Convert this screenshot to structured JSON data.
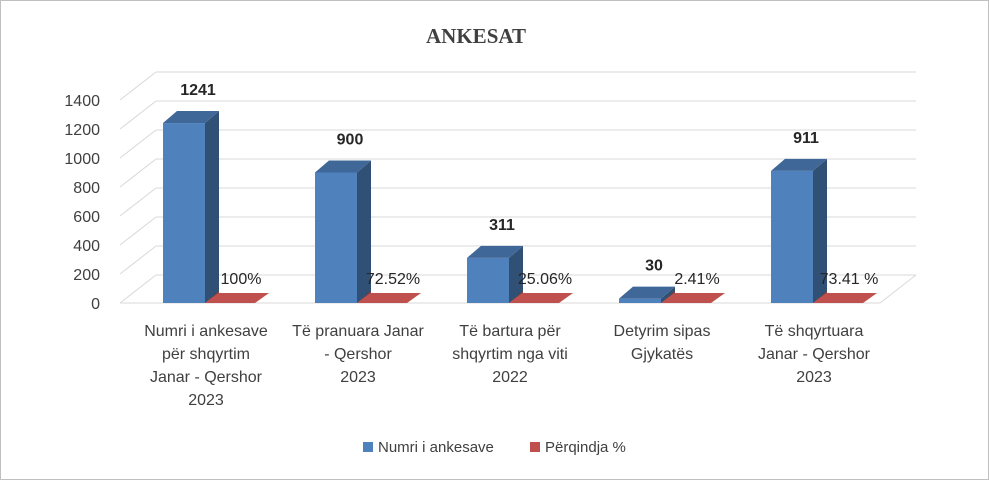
{
  "chart_data": {
    "type": "bar",
    "title": "ANKESAT",
    "categories": [
      [
        "Numri i ankesave",
        "për shqyrtim",
        "Janar - Qershor",
        "2023"
      ],
      [
        "Të pranuara  Janar",
        "- Qershor",
        "2023"
      ],
      [
        "Të bartura për",
        "shqyrtim nga viti",
        "2022"
      ],
      [
        "Detyrim sipas",
        "Gjykatës"
      ],
      [
        "Të shqyrtuara",
        "Janar - Qershor",
        "2023"
      ]
    ],
    "series": [
      {
        "name": "Numri i ankesave",
        "color": "#4f81bd",
        "values": [
          1241,
          900,
          311,
          30,
          911
        ],
        "labels": [
          "1241",
          "900",
          "311",
          "30",
          "911"
        ]
      },
      {
        "name": "Përqindja %",
        "color": "#c0504d",
        "values": [
          100,
          72.52,
          25.06,
          2.41,
          73.41
        ],
        "labels": [
          "100%",
          "72.52%",
          "25.06%",
          "2.41%",
          "73.41 %"
        ]
      }
    ],
    "y_ticks": [
      "0",
      "200",
      "400",
      "600",
      "800",
      "1000",
      "1200",
      "1400"
    ],
    "ylim": [
      0,
      1400
    ],
    "grid": true,
    "legend": "bottom"
  }
}
